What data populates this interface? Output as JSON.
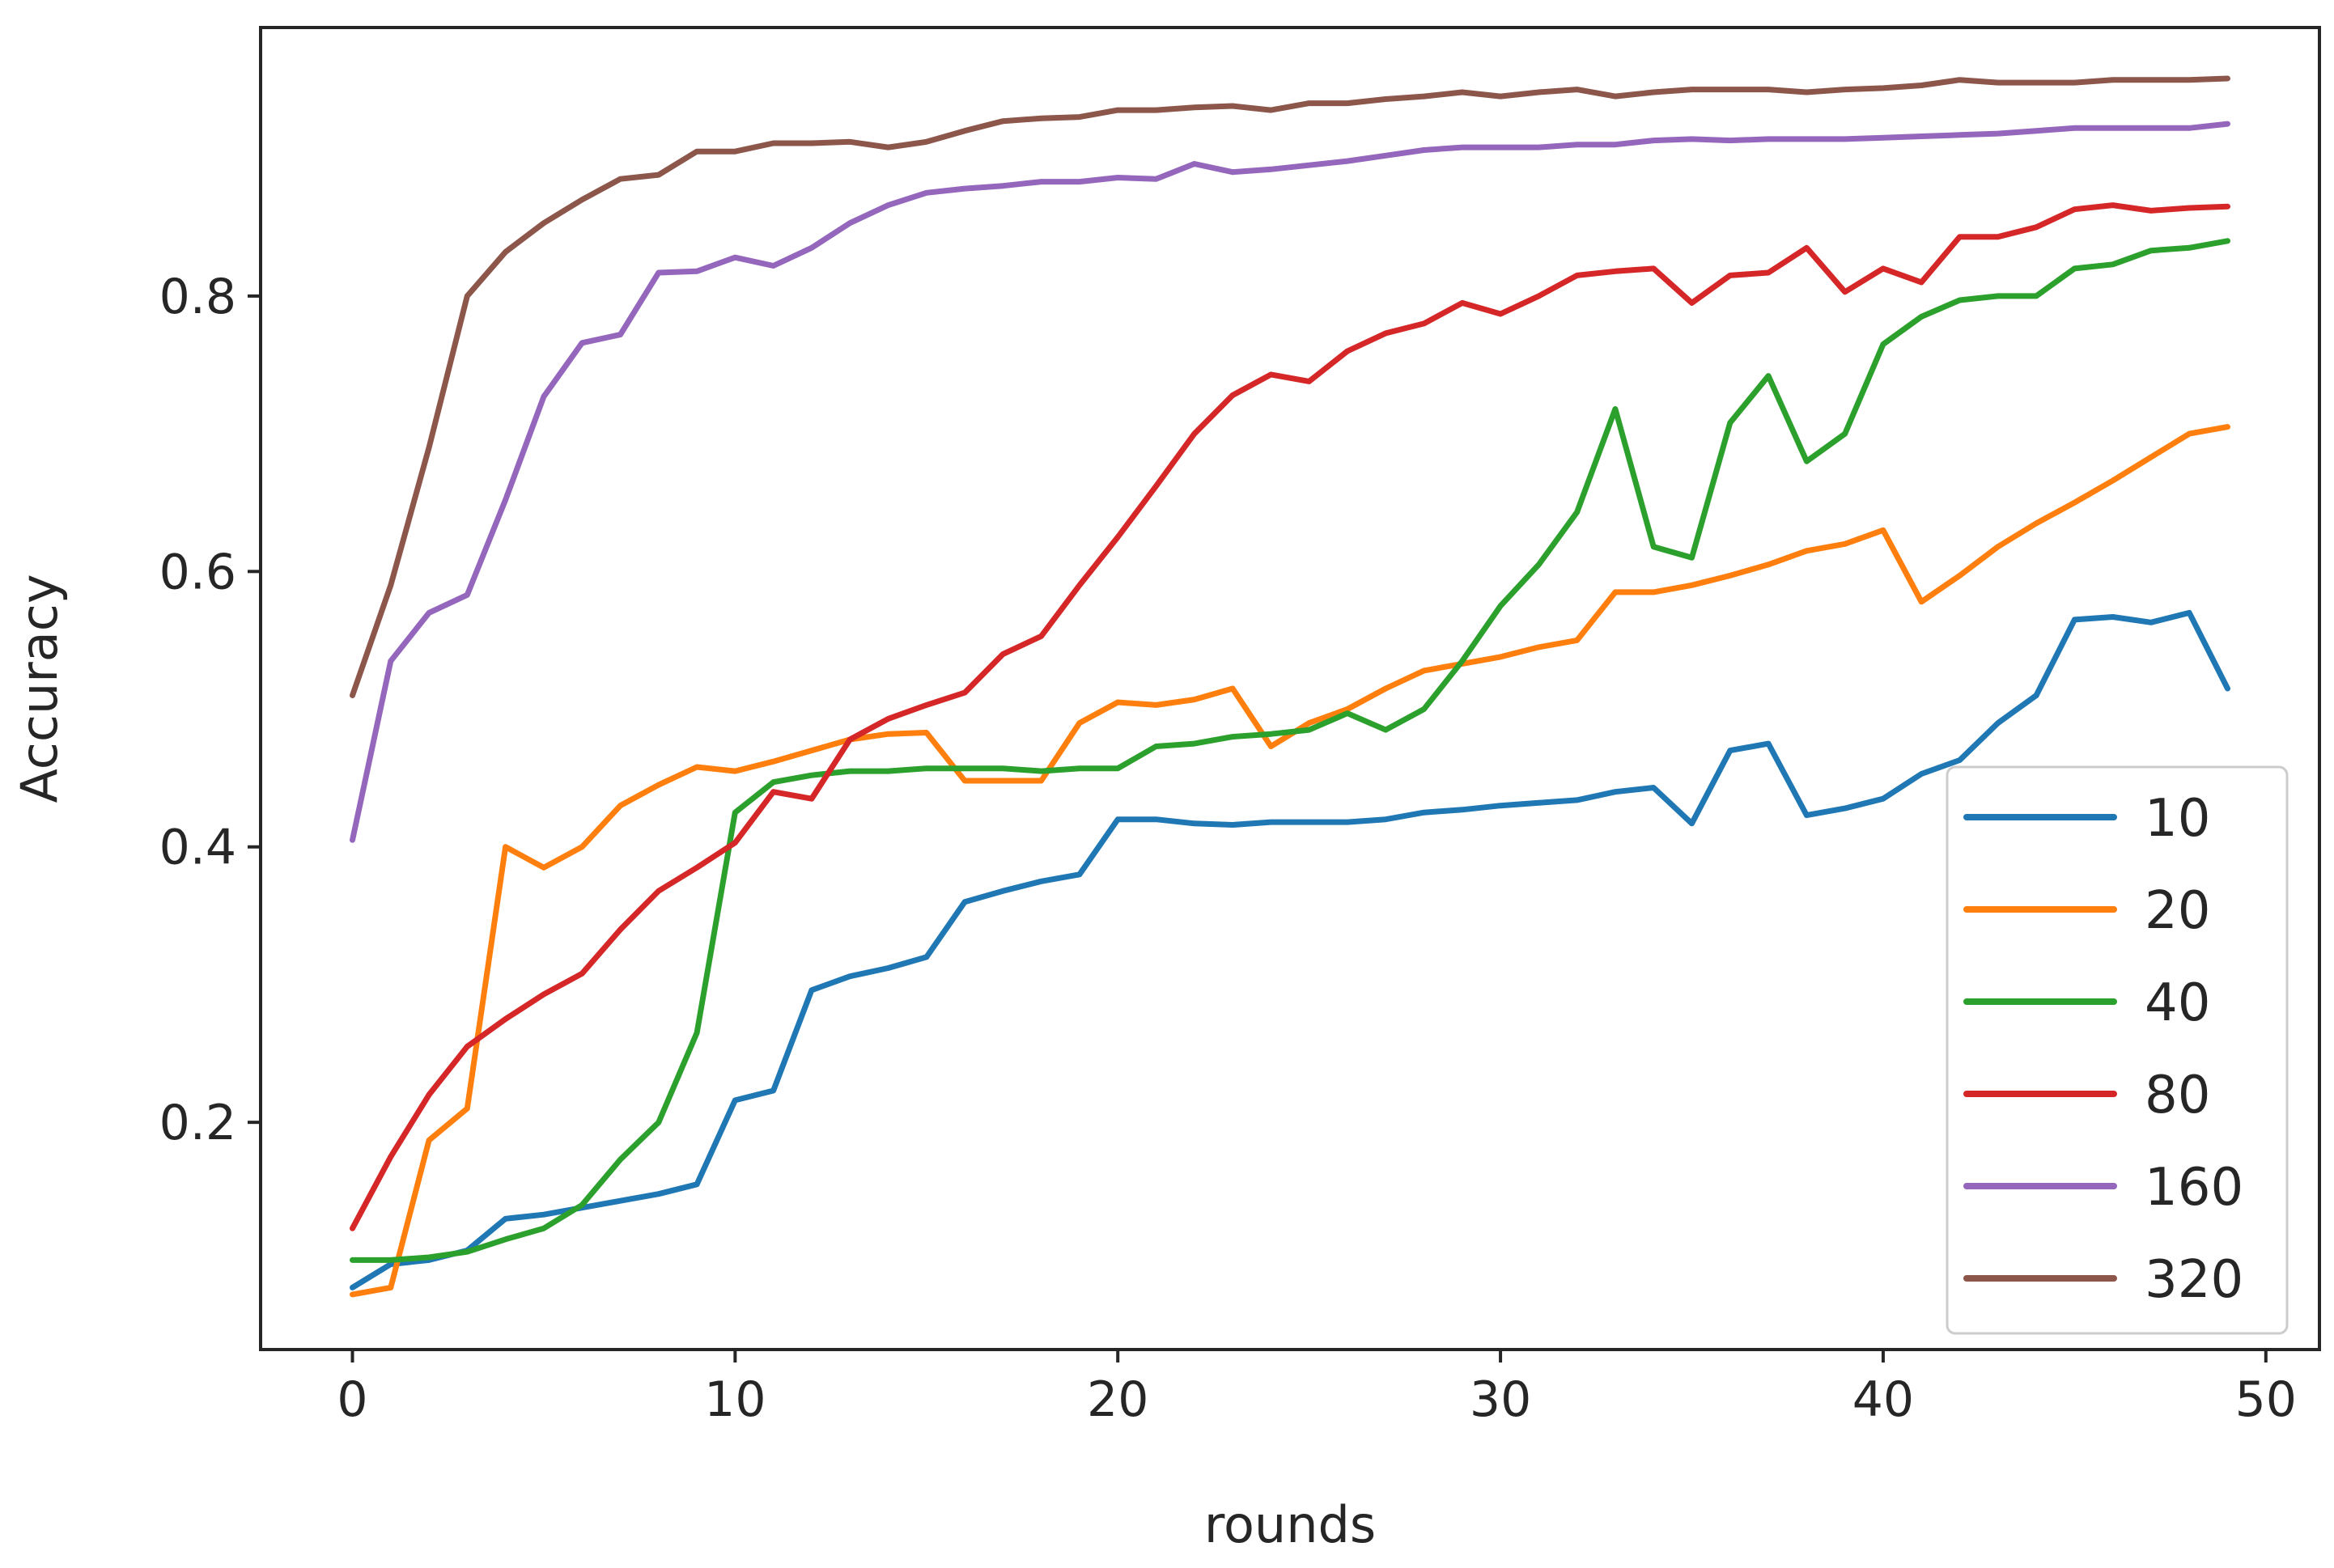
{
  "chart_data": {
    "type": "line",
    "title": "",
    "xlabel": "rounds",
    "ylabel": "Accuracy",
    "xlim": [
      -2.4,
      51.4
    ],
    "ylim": [
      0.035,
      0.995
    ],
    "xticks": [
      0,
      10,
      20,
      30,
      40,
      50
    ],
    "yticks": [
      0.2,
      0.4,
      0.6,
      0.8
    ],
    "xtick_labels": [
      "0",
      "10",
      "20",
      "30",
      "40",
      "50"
    ],
    "ytick_labels": [
      "0.2",
      "0.4",
      "0.6",
      "0.8"
    ],
    "grid": false,
    "legend_position": "lower right",
    "x": [
      0,
      1,
      2,
      3,
      4,
      5,
      6,
      7,
      8,
      9,
      10,
      11,
      12,
      13,
      14,
      15,
      16,
      17,
      18,
      19,
      20,
      21,
      22,
      23,
      24,
      25,
      26,
      27,
      28,
      29,
      30,
      31,
      32,
      33,
      34,
      35,
      36,
      37,
      38,
      39,
      40,
      41,
      42,
      43,
      44,
      45,
      46,
      47,
      48,
      49
    ],
    "series": [
      {
        "name": "10",
        "color": "#1f77b4",
        "values": [
          0.08,
          0.097,
          0.1,
          0.107,
          0.13,
          0.133,
          0.138,
          0.143,
          0.148,
          0.155,
          0.216,
          0.223,
          0.296,
          0.306,
          0.312,
          0.32,
          0.36,
          0.368,
          0.375,
          0.38,
          0.42,
          0.42,
          0.417,
          0.416,
          0.418,
          0.418,
          0.418,
          0.42,
          0.425,
          0.427,
          0.43,
          0.432,
          0.434,
          0.44,
          0.443,
          0.417,
          0.47,
          0.475,
          0.423,
          0.428,
          0.435,
          0.453,
          0.463,
          0.49,
          0.51,
          0.565,
          0.567,
          0.563,
          0.57,
          0.515
        ]
      },
      {
        "name": "20",
        "color": "#ff7f0e",
        "values": [
          0.075,
          0.08,
          0.187,
          0.21,
          0.4,
          0.385,
          0.4,
          0.43,
          0.445,
          0.458,
          0.455,
          0.462,
          0.47,
          0.478,
          0.482,
          0.483,
          0.448,
          0.448,
          0.448,
          0.49,
          0.505,
          0.503,
          0.507,
          0.515,
          0.473,
          0.49,
          0.5,
          0.515,
          0.528,
          0.533,
          0.538,
          0.545,
          0.55,
          0.585,
          0.585,
          0.59,
          0.597,
          0.605,
          0.615,
          0.62,
          0.63,
          0.578,
          0.597,
          0.618,
          0.635,
          0.65,
          0.666,
          0.683,
          0.7,
          0.705
        ]
      },
      {
        "name": "40",
        "color": "#2ca02c",
        "values": [
          0.1,
          0.1,
          0.102,
          0.106,
          0.115,
          0.123,
          0.14,
          0.173,
          0.2,
          0.265,
          0.425,
          0.447,
          0.452,
          0.455,
          0.455,
          0.457,
          0.457,
          0.457,
          0.455,
          0.457,
          0.457,
          0.473,
          0.475,
          0.48,
          0.482,
          0.485,
          0.497,
          0.485,
          0.5,
          0.535,
          0.575,
          0.605,
          0.643,
          0.718,
          0.618,
          0.61,
          0.708,
          0.742,
          0.68,
          0.7,
          0.765,
          0.785,
          0.797,
          0.8,
          0.8,
          0.82,
          0.823,
          0.833,
          0.835,
          0.84
        ]
      },
      {
        "name": "80",
        "color": "#d62728",
        "values": [
          0.123,
          0.175,
          0.22,
          0.255,
          0.275,
          0.293,
          0.308,
          0.34,
          0.368,
          0.385,
          0.403,
          0.44,
          0.435,
          0.478,
          0.493,
          0.503,
          0.512,
          0.54,
          0.553,
          0.59,
          0.625,
          0.662,
          0.7,
          0.728,
          0.743,
          0.738,
          0.76,
          0.773,
          0.78,
          0.795,
          0.787,
          0.8,
          0.815,
          0.818,
          0.82,
          0.795,
          0.815,
          0.817,
          0.835,
          0.803,
          0.82,
          0.81,
          0.843,
          0.843,
          0.85,
          0.863,
          0.866,
          0.862,
          0.864,
          0.865
        ]
      },
      {
        "name": "160",
        "color": "#9467bd",
        "values": [
          0.405,
          0.535,
          0.57,
          0.583,
          0.652,
          0.727,
          0.766,
          0.772,
          0.817,
          0.818,
          0.828,
          0.822,
          0.835,
          0.853,
          0.866,
          0.875,
          0.878,
          0.88,
          0.883,
          0.883,
          0.886,
          0.885,
          0.896,
          0.89,
          0.892,
          0.895,
          0.898,
          0.902,
          0.906,
          0.908,
          0.908,
          0.908,
          0.91,
          0.91,
          0.913,
          0.914,
          0.913,
          0.914,
          0.914,
          0.914,
          0.915,
          0.916,
          0.917,
          0.918,
          0.92,
          0.922,
          0.922,
          0.922,
          0.922,
          0.925
        ]
      },
      {
        "name": "320",
        "color": "#8c564b",
        "values": [
          0.51,
          0.59,
          0.69,
          0.8,
          0.832,
          0.853,
          0.87,
          0.885,
          0.888,
          0.905,
          0.905,
          0.911,
          0.911,
          0.912,
          0.908,
          0.912,
          0.92,
          0.927,
          0.929,
          0.93,
          0.935,
          0.935,
          0.937,
          0.938,
          0.935,
          0.94,
          0.94,
          0.943,
          0.945,
          0.948,
          0.945,
          0.948,
          0.95,
          0.945,
          0.948,
          0.95,
          0.95,
          0.95,
          0.948,
          0.95,
          0.951,
          0.953,
          0.957,
          0.955,
          0.955,
          0.955,
          0.957,
          0.957,
          0.957,
          0.958
        ]
      }
    ]
  }
}
